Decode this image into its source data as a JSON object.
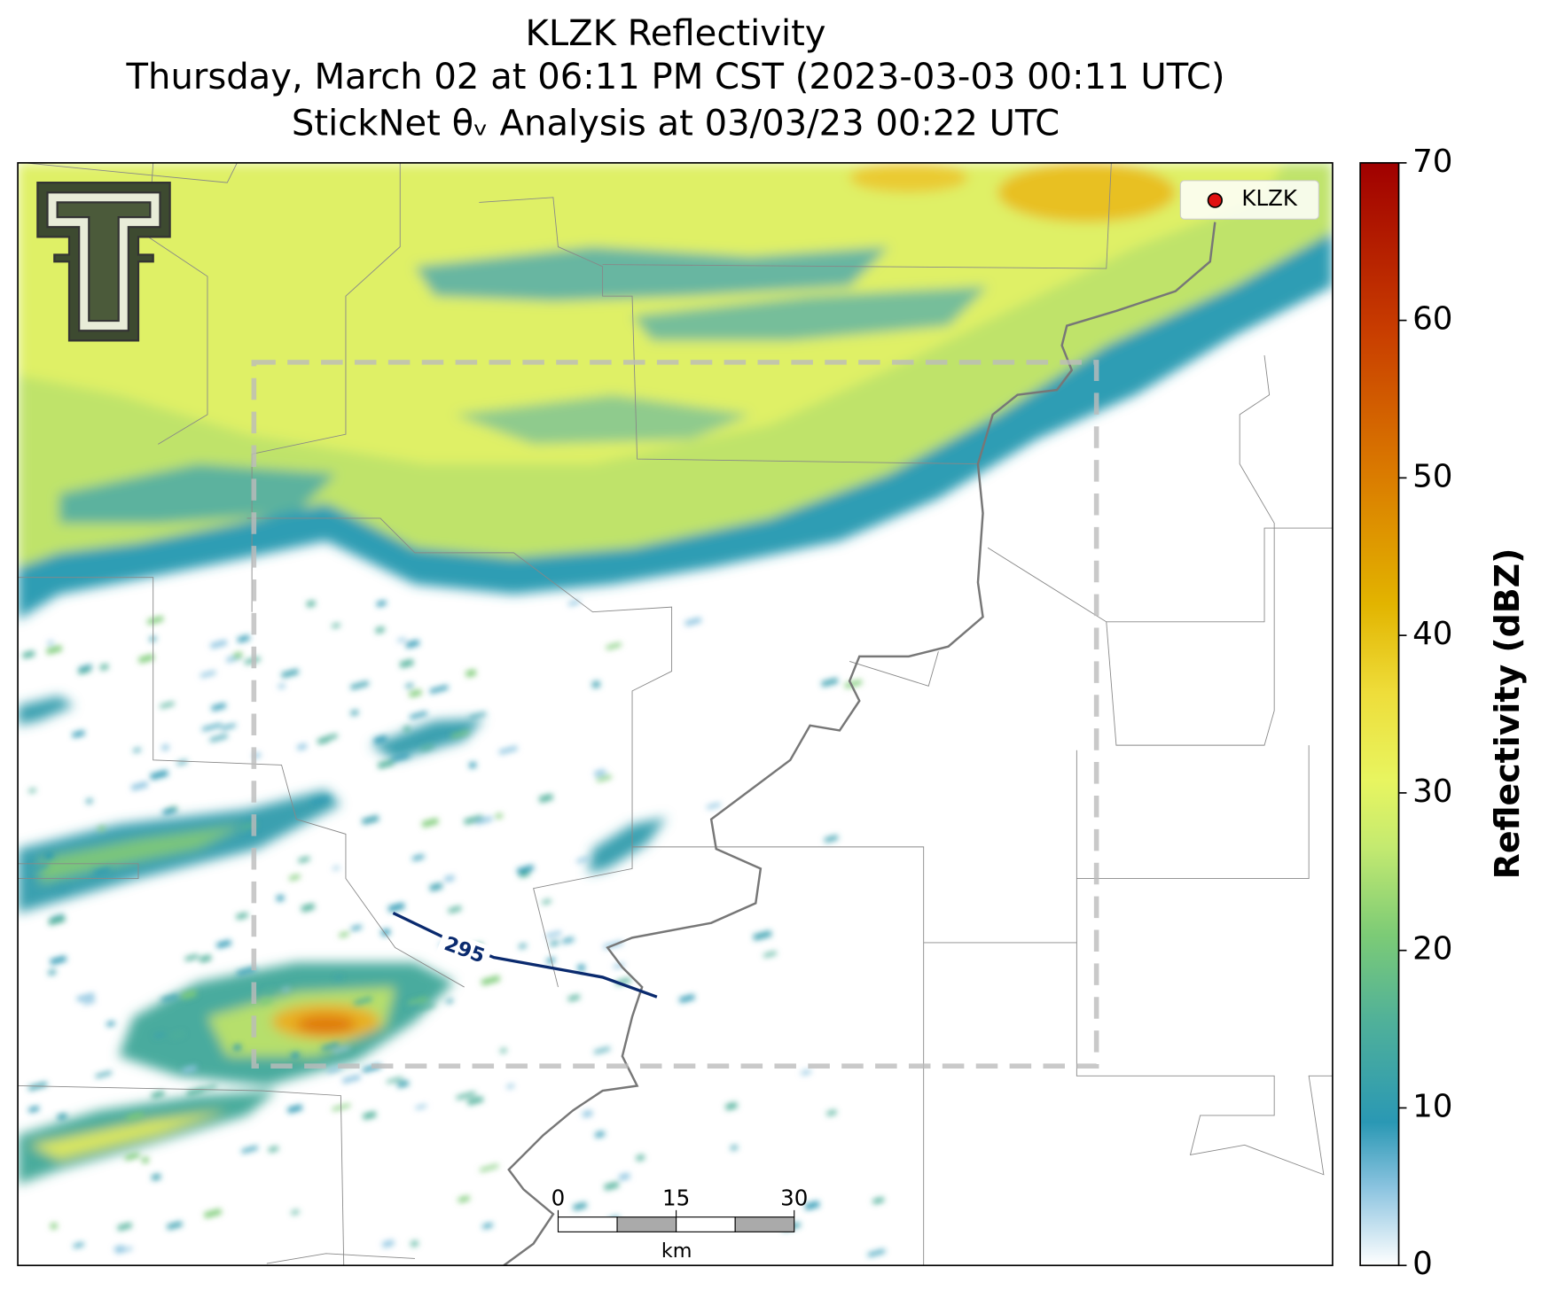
{
  "title": [
    "KLZK Reflectivity",
    "Thursday, March 02 at 06:11 PM CST (2023-03-03 00:11 UTC)",
    "StickNet θᵥ Analysis at 03/03/23 00:22 UTC"
  ],
  "colorbar": {
    "label": "Reflectivity (dBZ)",
    "lim": [
      0,
      70
    ],
    "ticks": [
      0,
      10,
      20,
      30,
      40,
      50,
      60,
      70
    ]
  },
  "legend": {
    "label": "KLZK"
  },
  "contour": {
    "label": "295"
  },
  "scalebar": {
    "ticks": [
      0,
      15,
      30
    ],
    "unit": "km"
  }
}
